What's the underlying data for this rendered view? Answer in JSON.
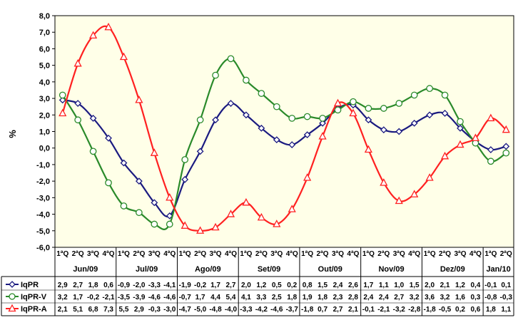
{
  "chart_data": {
    "type": "line",
    "ylabel": "%",
    "ylim": [
      -6,
      8
    ],
    "yticks": [
      "8,0",
      "7,0",
      "6,0",
      "5,0",
      "4,0",
      "3,0",
      "2,0",
      "1,0",
      "0,0",
      "-1,0",
      "-2,0",
      "-3,0",
      "-4,0",
      "-5,0",
      "-6,0"
    ],
    "x": [
      "1ªQ",
      "2ªQ",
      "3ªQ",
      "4ªQ",
      "1ªQ",
      "2ªQ",
      "3ªQ",
      "4ªQ",
      "1ªQ",
      "2ªQ",
      "3ªQ",
      "4ªQ",
      "1ªQ",
      "2ªQ",
      "3ªQ",
      "4ªQ",
      "1ªQ",
      "2ªQ",
      "3ªQ",
      "4ªQ",
      "1ªQ",
      "2ªQ",
      "3ªQ",
      "4ªQ",
      "1ªQ",
      "2ªQ",
      "3ªQ",
      "4ªQ",
      "1ªQ",
      "2ªQ"
    ],
    "months": [
      {
        "label": "Jun/09",
        "start": 0,
        "count": 4
      },
      {
        "label": "Jul/09",
        "start": 4,
        "count": 4
      },
      {
        "label": "Ago/09",
        "start": 8,
        "count": 4
      },
      {
        "label": "Set/09",
        "start": 12,
        "count": 4
      },
      {
        "label": "Out/09",
        "start": 16,
        "count": 4
      },
      {
        "label": "Nov/09",
        "start": 20,
        "count": 4
      },
      {
        "label": "Dez/09",
        "start": 24,
        "count": 4
      },
      {
        "label": "Jan/10",
        "start": 28,
        "count": 2
      }
    ],
    "series": [
      {
        "name": "IqPR",
        "color": "#1a1a80",
        "marker": "diamond",
        "values": [
          2.9,
          2.7,
          1.8,
          0.6,
          -0.9,
          -2.0,
          -3.3,
          -4.1,
          -1.9,
          -0.2,
          1.7,
          2.7,
          2.0,
          1.2,
          0.5,
          0.2,
          0.8,
          1.5,
          2.4,
          2.6,
          1.7,
          1.1,
          1.0,
          1.5,
          2.0,
          2.1,
          1.2,
          0.4,
          -0.1,
          0.1
        ],
        "labels": [
          "2,9",
          "2,7",
          "1,8",
          "0,6",
          "-0,9",
          "-2,0",
          "-3,3",
          "-4,1",
          "-1,9",
          "-0,2",
          "1,7",
          "2,7",
          "2,0",
          "1,2",
          "0,5",
          "0,2",
          "0,8",
          "1,5",
          "2,4",
          "2,6",
          "1,7",
          "1,1",
          "1,0",
          "1,5",
          "2,0",
          "2,1",
          "1,2",
          "0,4",
          "-0,1",
          "0,1"
        ]
      },
      {
        "name": "IqPR-V",
        "color": "#2a8a2a",
        "marker": "circle",
        "values": [
          3.2,
          1.7,
          -0.2,
          -2.1,
          -3.5,
          -3.9,
          -4.6,
          -4.6,
          -0.7,
          1.7,
          4.4,
          5.4,
          4.1,
          3.3,
          2.5,
          1.8,
          1.9,
          1.8,
          2.3,
          2.8,
          2.4,
          2.4,
          2.7,
          3.2,
          3.6,
          3.2,
          1.6,
          0.3,
          -0.8,
          -0.3
        ],
        "labels": [
          "3,2",
          "1,7",
          "-0,2",
          "-2,1",
          "-3,5",
          "-3,9",
          "-4,6",
          "-4,6",
          "-0,7",
          "1,7",
          "4,4",
          "5,4",
          "4,1",
          "3,3",
          "2,5",
          "1,8",
          "1,9",
          "1,8",
          "2,3",
          "2,8",
          "2,4",
          "2,4",
          "2,7",
          "3,2",
          "3,6",
          "3,2",
          "1,6",
          "0,3",
          "-0,8",
          "-0,3"
        ]
      },
      {
        "name": "IqPR-A",
        "color": "#ff2020",
        "marker": "triangle",
        "values": [
          2.1,
          5.1,
          6.8,
          7.3,
          5.5,
          2.9,
          -0.3,
          -3.0,
          -4.7,
          -5.0,
          -4.8,
          -4.0,
          -3.3,
          -4.2,
          -4.6,
          -3.7,
          -1.8,
          0.7,
          2.7,
          2.1,
          -0.1,
          -2.1,
          -3.2,
          -2.8,
          -1.8,
          -0.5,
          0.2,
          0.6,
          1.8,
          1.1
        ],
        "labels": [
          "2,1",
          "5,1",
          "6,8",
          "7,3",
          "5,5",
          "2,9",
          "-0,3",
          "-3,0",
          "-4,7",
          "-5,0",
          "-4,8",
          "-4,0",
          "-3,3",
          "-4,2",
          "-4,6",
          "-3,7",
          "-1,8",
          "0,7",
          "2,7",
          "2,1",
          "-0,1",
          "-2,1",
          "-3,2",
          "-2,8",
          "-1,8",
          "-0,5",
          "0,2",
          "0,6",
          "1,8",
          "1,1"
        ]
      }
    ],
    "grid": false,
    "plot_background": "#ffffe8"
  }
}
